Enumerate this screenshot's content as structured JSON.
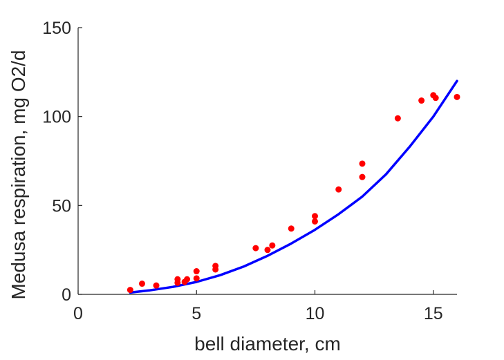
{
  "chart_data": {
    "type": "scatter",
    "title": "",
    "xlabel": "bell diameter, cm",
    "ylabel": "Medusa respiration, mg O2/d",
    "xlim": [
      0,
      16
    ],
    "ylim": [
      0,
      150
    ],
    "xticks": [
      0,
      5,
      10,
      15
    ],
    "yticks": [
      0,
      50,
      100,
      150
    ],
    "grid": false,
    "series": [
      {
        "kind": "scatter",
        "color": "#ff0000",
        "x": [
          2.2,
          2.7,
          3.3,
          4.2,
          4.2,
          4.5,
          4.6,
          5.0,
          5.0,
          5.8,
          5.8,
          7.5,
          8.0,
          8.2,
          9.0,
          10.0,
          10.0,
          11.0,
          12.0,
          12.0,
          13.5,
          14.5,
          15.0,
          15.1,
          16.0
        ],
        "y": [
          2.5,
          6.0,
          5.0,
          8.5,
          6.5,
          7.0,
          8.5,
          9.0,
          13.0,
          16.0,
          14.0,
          26.0,
          25.0,
          27.5,
          37.0,
          41.0,
          44.0,
          59.0,
          66.0,
          73.5,
          99.0,
          109.0,
          112.0,
          110.5,
          111.0
        ]
      },
      {
        "kind": "line",
        "color": "#0000ff",
        "x": [
          2.2,
          3.0,
          4.0,
          5.0,
          6.0,
          7.0,
          8.0,
          9.0,
          10.0,
          11.0,
          12.0,
          13.0,
          14.0,
          15.0,
          16.0
        ],
        "y": [
          1.0,
          2.2,
          4.2,
          7.0,
          10.8,
          15.7,
          21.7,
          28.6,
          36.3,
          45.1,
          55.0,
          67.5,
          83.0,
          100.0,
          120.0
        ]
      }
    ]
  }
}
